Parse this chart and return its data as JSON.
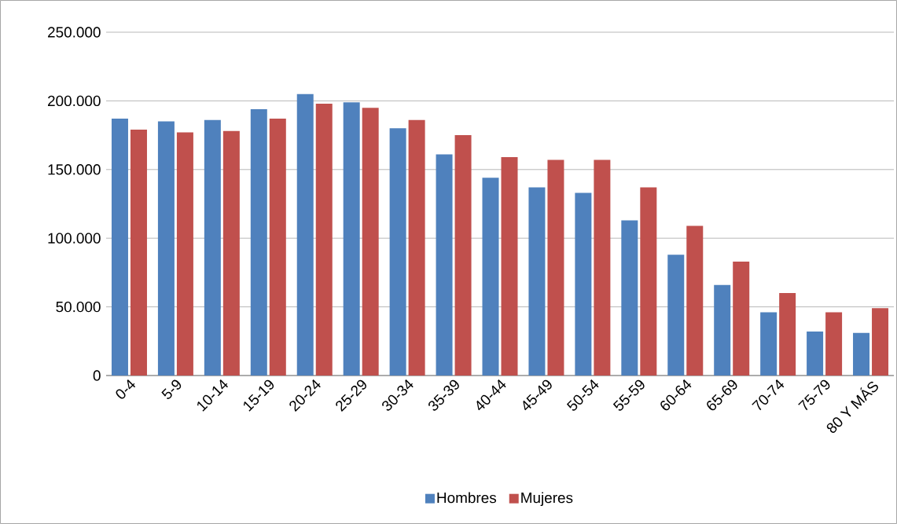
{
  "chart_data": {
    "type": "bar",
    "categories": [
      "0-4",
      "5-9",
      "10-14",
      "15-19",
      "20-24",
      "25-29",
      "30-34",
      "35-39",
      "40-44",
      "45-49",
      "50-54",
      "55-59",
      "60-64",
      "65-69",
      "70-74",
      "75-79",
      "80 Y MÁS"
    ],
    "series": [
      {
        "name": "Hombres",
        "color": "#4f81bd",
        "values": [
          187000,
          185000,
          186000,
          194000,
          205000,
          199000,
          180000,
          161000,
          144000,
          137000,
          133000,
          113000,
          88000,
          66000,
          46000,
          32000,
          31000
        ]
      },
      {
        "name": "Mujeres",
        "color": "#c0504d",
        "values": [
          179000,
          177000,
          178000,
          187000,
          198000,
          195000,
          186000,
          175000,
          159000,
          157000,
          157000,
          137000,
          109000,
          83000,
          60000,
          46000,
          49000
        ]
      }
    ],
    "ylim": [
      0,
      250000
    ],
    "yticks": [
      {
        "value": 0,
        "label": "0"
      },
      {
        "value": 50000,
        "label": "50.000"
      },
      {
        "value": 100000,
        "label": "100.000"
      },
      {
        "value": 150000,
        "label": "150.000"
      },
      {
        "value": 200000,
        "label": "200.000"
      },
      {
        "value": 250000,
        "label": "250.000"
      }
    ],
    "grid": "y",
    "legend": "bottom"
  }
}
